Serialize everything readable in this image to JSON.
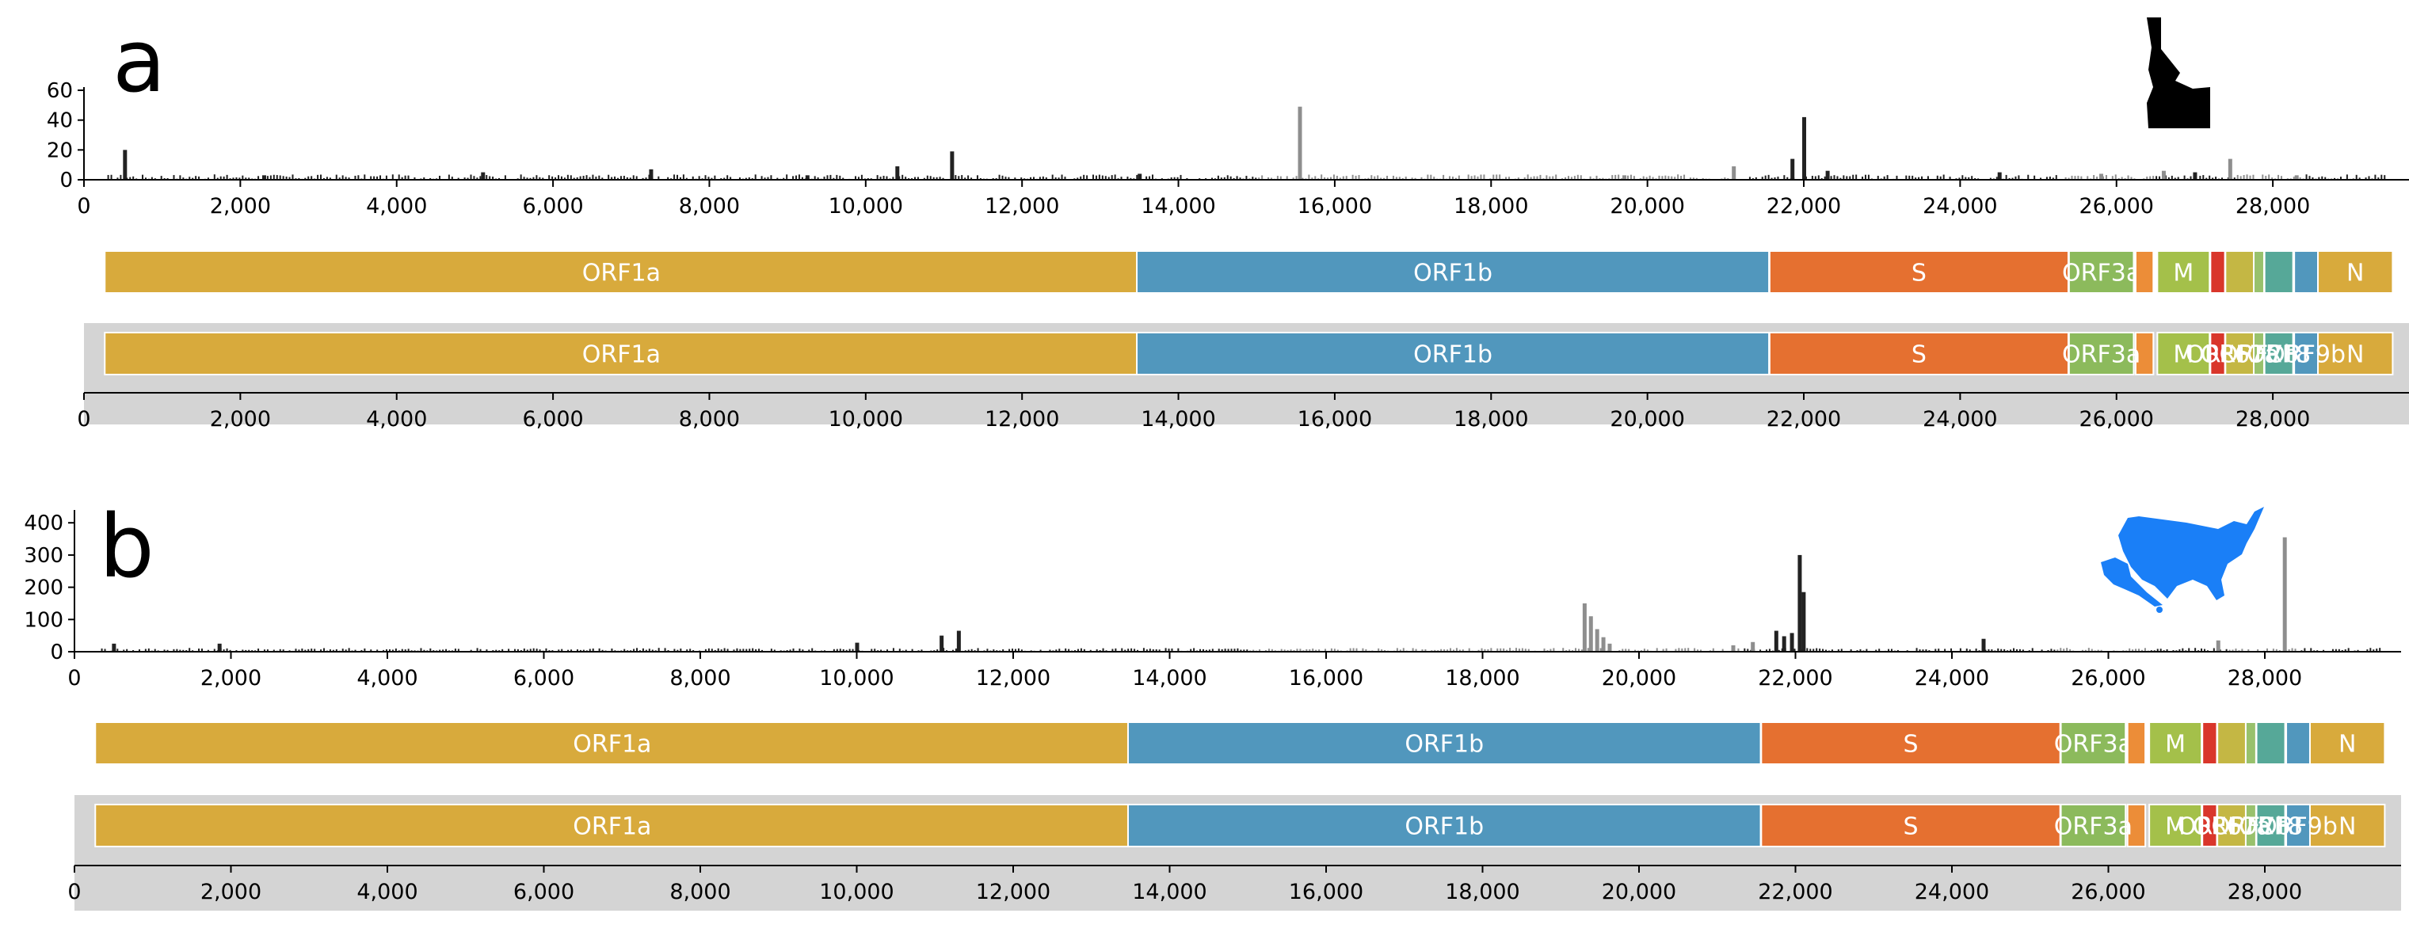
{
  "chart_data": [
    {
      "type": "bar",
      "panel_label": "a",
      "region_icon": "idaho-state-silhouette-icon",
      "xlim": [
        0,
        29600
      ],
      "ylim": [
        0,
        60
      ],
      "y_ticks": [
        "0",
        "20",
        "40",
        "60"
      ],
      "x_ticks": [
        "0",
        "2,000",
        "4,000",
        "6,000",
        "8,000",
        "10,000",
        "12,000",
        "14,000",
        "16,000",
        "18,000",
        "20,000",
        "22,000",
        "24,000",
        "26,000",
        "28,000"
      ],
      "x_tick_values": [
        0,
        2000,
        4000,
        6000,
        8000,
        10000,
        12000,
        14000,
        16000,
        18000,
        20000,
        22000,
        24000,
        26000,
        28000
      ],
      "dark_peaks": [
        [
          520,
          20
        ],
        [
          2300,
          3
        ],
        [
          5100,
          5
        ],
        [
          7250,
          7
        ],
        [
          9250,
          3
        ],
        [
          10400,
          9
        ],
        [
          11100,
          19
        ],
        [
          13500,
          4
        ],
        [
          21850,
          14
        ],
        [
          22000,
          42
        ],
        [
          22300,
          6
        ],
        [
          24500,
          5
        ],
        [
          27000,
          5
        ]
      ],
      "light_peaks": [
        [
          15550,
          49
        ],
        [
          19700,
          3
        ],
        [
          21100,
          9
        ],
        [
          25800,
          4
        ],
        [
          26600,
          6
        ],
        [
          27450,
          14
        ],
        [
          28300,
          3
        ]
      ],
      "baseline_level": 3,
      "genes": [
        {
          "name": "ORF1a",
          "start": 266,
          "end": 13483,
          "color": "#d8aa3c",
          "label": "ORF1a"
        },
        {
          "name": "ORF1b",
          "start": 13468,
          "end": 21555,
          "color": "#5197bd",
          "label": "ORF1b"
        },
        {
          "name": "S",
          "start": 21563,
          "end": 25384,
          "color": "#e57030",
          "label": "S"
        },
        {
          "name": "ORF3a",
          "start": 25393,
          "end": 26220,
          "color": "#8cba5c",
          "label": "ORF3a"
        },
        {
          "name": "E",
          "start": 26245,
          "end": 26472,
          "color": "#ec8d38",
          "label": ""
        },
        {
          "name": "M",
          "start": 26523,
          "end": 27191,
          "color": "#a4c04a",
          "label": "M"
        },
        {
          "name": "ORF6",
          "start": 27202,
          "end": 27387,
          "color": "#d9362b",
          "label": ""
        },
        {
          "name": "ORF7a",
          "start": 27394,
          "end": 27759,
          "color": "#c4b744",
          "label": ""
        },
        {
          "name": "ORF7b",
          "start": 27756,
          "end": 27887,
          "color": "#98c16c",
          "label": ""
        },
        {
          "name": "ORF8",
          "start": 27894,
          "end": 28259,
          "color": "#56a898",
          "label": ""
        },
        {
          "name": "ORF9b",
          "start": 28274,
          "end": 28577,
          "color": "#5197bd",
          "label": ""
        },
        {
          "name": "N",
          "start": 28577,
          "end": 29533,
          "color": "#d8aa3c",
          "label": "N"
        }
      ],
      "overview_labels": [
        "ORF1a",
        "ORF1b",
        "S",
        "ORF3a",
        "",
        "M",
        "ORF6",
        "ORF7a",
        "ORF7b",
        "ORF8",
        "ORF9b",
        "N"
      ]
    },
    {
      "type": "bar",
      "panel_label": "b",
      "region_icon": "usa-map-silhouette-icon",
      "xlim": [
        0,
        29600
      ],
      "ylim": [
        0,
        430
      ],
      "y_ticks": [
        "0",
        "100",
        "200",
        "300",
        "400"
      ],
      "x_ticks": [
        "0",
        "2,000",
        "4,000",
        "6,000",
        "8,000",
        "10,000",
        "12,000",
        "14,000",
        "16,000",
        "18,000",
        "20,000",
        "22,000",
        "24,000",
        "26,000",
        "28,000"
      ],
      "x_tick_values": [
        0,
        2000,
        4000,
        6000,
        8000,
        10000,
        12000,
        14000,
        16000,
        18000,
        20000,
        22000,
        24000,
        26000,
        28000
      ],
      "dark_peaks": [
        [
          500,
          25
        ],
        [
          1850,
          25
        ],
        [
          10000,
          28
        ],
        [
          11080,
          50
        ],
        [
          11300,
          65
        ],
        [
          21750,
          65
        ],
        [
          21850,
          48
        ],
        [
          21950,
          58
        ],
        [
          22050,
          300
        ],
        [
          22100,
          185
        ],
        [
          24400,
          40
        ]
      ],
      "light_peaks": [
        [
          19300,
          150
        ],
        [
          19380,
          110
        ],
        [
          19460,
          70
        ],
        [
          19540,
          45
        ],
        [
          19620,
          25
        ],
        [
          21200,
          20
        ],
        [
          21450,
          30
        ],
        [
          27400,
          35
        ],
        [
          28250,
          355
        ]
      ],
      "baseline_level": 10,
      "genes": [
        {
          "name": "ORF1a",
          "start": 266,
          "end": 13483,
          "color": "#d8aa3c",
          "label": "ORF1a"
        },
        {
          "name": "ORF1b",
          "start": 13468,
          "end": 21555,
          "color": "#5197bd",
          "label": "ORF1b"
        },
        {
          "name": "S",
          "start": 21563,
          "end": 25384,
          "color": "#e57030",
          "label": "S"
        },
        {
          "name": "ORF3a",
          "start": 25393,
          "end": 26220,
          "color": "#8cba5c",
          "label": "ORF3a"
        },
        {
          "name": "E",
          "start": 26245,
          "end": 26472,
          "color": "#ec8d38",
          "label": ""
        },
        {
          "name": "M",
          "start": 26523,
          "end": 27191,
          "color": "#a4c04a",
          "label": "M"
        },
        {
          "name": "ORF6",
          "start": 27202,
          "end": 27387,
          "color": "#d9362b",
          "label": ""
        },
        {
          "name": "ORF7a",
          "start": 27394,
          "end": 27759,
          "color": "#c4b744",
          "label": ""
        },
        {
          "name": "ORF7b",
          "start": 27756,
          "end": 27887,
          "color": "#98c16c",
          "label": ""
        },
        {
          "name": "ORF8",
          "start": 27894,
          "end": 28259,
          "color": "#56a898",
          "label": ""
        },
        {
          "name": "ORF9b",
          "start": 28274,
          "end": 28577,
          "color": "#5197bd",
          "label": ""
        },
        {
          "name": "N",
          "start": 28577,
          "end": 29533,
          "color": "#d8aa3c",
          "label": "N"
        }
      ],
      "overview_labels": [
        "ORF1a",
        "ORF1b",
        "S",
        "ORF3a",
        "",
        "M",
        "ORF6",
        "ORF7a",
        "ORF7b",
        "ORF8",
        "ORF9b",
        "N"
      ]
    }
  ],
  "colors": {
    "dark_bar": "#222222",
    "light_bar": "#8e8e8e",
    "overview_bg": "#d4d4d4",
    "axis": "#000000",
    "idaho_fill": "#000000",
    "usa_fill": "#1a7ff7",
    "gene_text": "#ffffff"
  }
}
